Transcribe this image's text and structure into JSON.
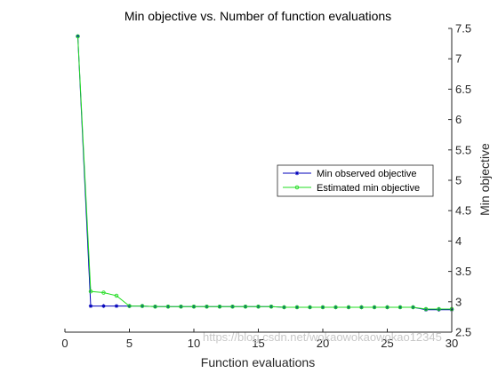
{
  "chart_data": {
    "type": "line",
    "title": "Min objective vs. Number of function evaluations",
    "xlabel": "Function evaluations",
    "ylabel": "Min objective",
    "xlim": [
      0,
      30
    ],
    "ylim": [
      2.5,
      7.5
    ],
    "xticks": [
      "0",
      "5",
      "10",
      "15",
      "20",
      "25",
      "30"
    ],
    "yticks": [
      "2.5",
      "3",
      "3.5",
      "4",
      "4.5",
      "5",
      "5.5",
      "6",
      "6.5",
      "7",
      "7.5"
    ],
    "y_axis_side": "right",
    "grid": false,
    "legend_position": "right",
    "series": [
      {
        "name": "Min observed objective",
        "color": "#0000bb",
        "marker": "star",
        "x": [
          1,
          2,
          3,
          4,
          5,
          6,
          7,
          8,
          9,
          10,
          11,
          12,
          13,
          14,
          15,
          16,
          17,
          18,
          19,
          20,
          21,
          22,
          23,
          24,
          25,
          26,
          27,
          28,
          29,
          30
        ],
        "values": [
          7.37,
          2.93,
          2.93,
          2.93,
          2.93,
          2.93,
          2.92,
          2.92,
          2.92,
          2.92,
          2.92,
          2.92,
          2.92,
          2.92,
          2.92,
          2.92,
          2.91,
          2.91,
          2.91,
          2.91,
          2.91,
          2.91,
          2.91,
          2.91,
          2.91,
          2.91,
          2.91,
          2.87,
          2.87,
          2.87
        ]
      },
      {
        "name": "Estimated min objective",
        "color": "#22dd22",
        "marker": "circle",
        "x": [
          1,
          2,
          3,
          4,
          5,
          6,
          7,
          8,
          9,
          10,
          11,
          12,
          13,
          14,
          15,
          16,
          17,
          18,
          19,
          20,
          21,
          22,
          23,
          24,
          25,
          26,
          27,
          28,
          29,
          30
        ],
        "values": [
          7.37,
          3.17,
          3.15,
          3.1,
          2.93,
          2.93,
          2.92,
          2.92,
          2.92,
          2.92,
          2.92,
          2.92,
          2.92,
          2.92,
          2.92,
          2.92,
          2.91,
          2.91,
          2.91,
          2.91,
          2.91,
          2.91,
          2.91,
          2.91,
          2.91,
          2.91,
          2.91,
          2.88,
          2.88,
          2.88
        ]
      }
    ]
  },
  "watermark": "https://blog.csdn.net/wokaowokaowokao12345"
}
